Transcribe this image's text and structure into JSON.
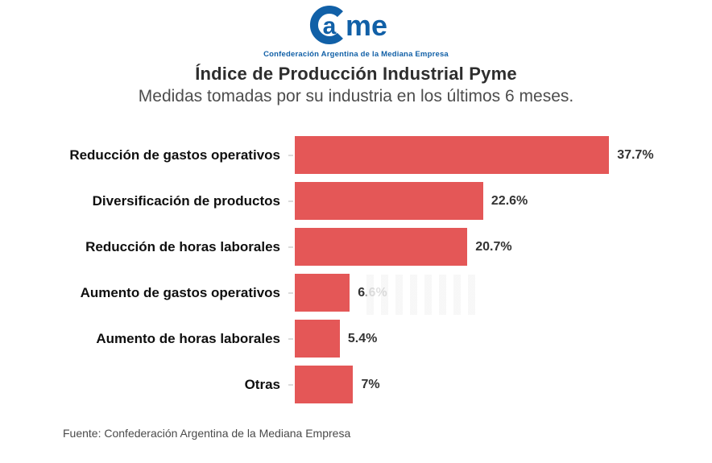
{
  "logo": {
    "name": "Came",
    "tagline": "Confederación Argentina de la Mediana Empresa",
    "color": "#1160a7"
  },
  "header": {
    "title": "Índice de Producción Industrial Pyme",
    "subtitle": "Medidas tomadas por su industria en los últimos 6 meses."
  },
  "chart_data": {
    "type": "bar",
    "orientation": "horizontal",
    "title": "Índice de Producción Industrial Pyme",
    "subtitle": "Medidas tomadas por su industria en los últimos 6 meses.",
    "categories": [
      "Reducción de gastos operativos",
      "Diversificación de productos",
      "Reducción de horas laborales",
      "Aumento de gastos operativos",
      "Aumento de horas laborales",
      "Otras"
    ],
    "values": [
      37.7,
      22.6,
      20.7,
      6.6,
      5.4,
      7
    ],
    "value_labels": [
      "37.7%",
      "22.6%",
      "20.7%",
      "6.6%",
      "5.4%",
      "7%"
    ],
    "bar_color": "#e45757",
    "xlim": [
      0,
      40
    ],
    "grid": false,
    "legend": false,
    "unit": "%"
  },
  "footer": {
    "source": "Fuente: Confederación Argentina de la Mediana Empresa"
  }
}
